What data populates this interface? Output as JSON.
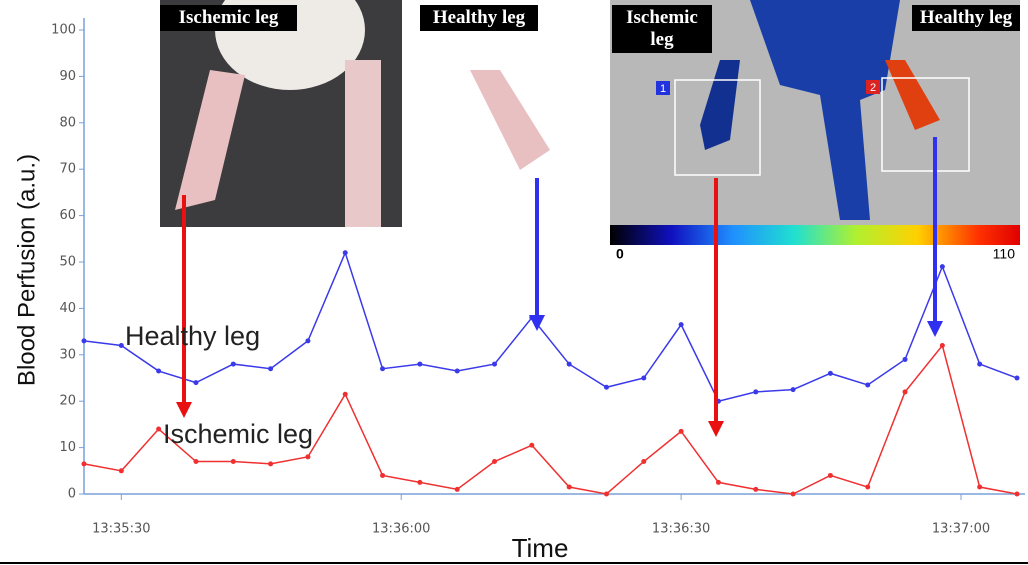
{
  "chart_data": {
    "type": "line",
    "x_label": "Time",
    "y_label": "Blood Perfusion (a.u.)",
    "x": [
      "13:35:26",
      "13:35:30",
      "13:35:34",
      "13:35:38",
      "13:35:42",
      "13:35:46",
      "13:35:50",
      "13:35:54",
      "13:35:58",
      "13:36:02",
      "13:36:06",
      "13:36:10",
      "13:36:14",
      "13:36:18",
      "13:36:22",
      "13:36:26",
      "13:36:30",
      "13:36:34",
      "13:36:38",
      "13:36:42",
      "13:36:46",
      "13:36:50",
      "13:36:54",
      "13:36:58",
      "13:37:02",
      "13:37:06"
    ],
    "series": [
      {
        "name": "Healthy leg",
        "color": "#3a3aea",
        "values": [
          33,
          32,
          26.5,
          24,
          28,
          27,
          33,
          52,
          27,
          28,
          26.5,
          28,
          38,
          28,
          23,
          25,
          36.5,
          20,
          22,
          22.5,
          26,
          23.5,
          29,
          49,
          28,
          25
        ]
      },
      {
        "name": "Ischemic leg",
        "color": "#f03030",
        "values": [
          6.5,
          5,
          14,
          7,
          7,
          6.5,
          8,
          21.5,
          4,
          2.5,
          1,
          7,
          10.5,
          1.5,
          0,
          7,
          13.5,
          2.5,
          1,
          0,
          4,
          1.5,
          22,
          32,
          1.5,
          0
        ]
      }
    ],
    "xlim": [
      "13:35:26",
      "13:37:06"
    ],
    "xticks": [
      "13:35:30",
      "13:36:00",
      "13:36:30",
      "13:37:00"
    ],
    "ylim": [
      0,
      100
    ],
    "yticks": [
      0,
      10,
      20,
      30,
      40,
      50,
      60,
      70,
      80,
      90,
      100
    ],
    "insets": {
      "photo_left": "Ischemic leg",
      "photo_right": "Healthy leg",
      "image_left": "Ischemic leg",
      "image_right": "Healthy leg",
      "roi_1": "1",
      "roi_2": "2",
      "scale_min": "0",
      "scale_max": "110"
    }
  }
}
